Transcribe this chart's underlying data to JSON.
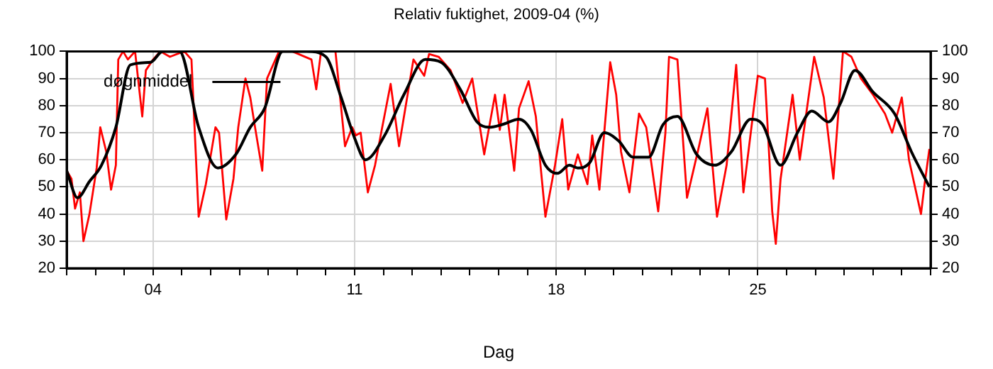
{
  "chart_data": {
    "type": "line",
    "title": "Relativ fuktighet, 2009-04 (%)",
    "xlabel": "Dag",
    "xlim": [
      "2009-04-01",
      "2009-05-01"
    ],
    "xticks": [
      {
        "value": "2009-04-01",
        "label": null
      },
      {
        "value": "2009-04-02",
        "label": null
      },
      {
        "value": "2009-04-03",
        "label": null
      },
      {
        "value": "2009-04-04",
        "label": "04"
      },
      {
        "value": "2009-04-05",
        "label": null
      },
      {
        "value": "2009-04-06",
        "label": null
      },
      {
        "value": "2009-04-07",
        "label": null
      },
      {
        "value": "2009-04-08",
        "label": null
      },
      {
        "value": "2009-04-09",
        "label": null
      },
      {
        "value": "2009-04-10",
        "label": null
      },
      {
        "value": "2009-04-11",
        "label": "11"
      },
      {
        "value": "2009-04-12",
        "label": null
      },
      {
        "value": "2009-04-13",
        "label": null
      },
      {
        "value": "2009-04-14",
        "label": null
      },
      {
        "value": "2009-04-15",
        "label": null
      },
      {
        "value": "2009-04-16",
        "label": null
      },
      {
        "value": "2009-04-17",
        "label": null
      },
      {
        "value": "2009-04-18",
        "label": "18"
      },
      {
        "value": "2009-04-19",
        "label": null
      },
      {
        "value": "2009-04-20",
        "label": null
      },
      {
        "value": "2009-04-21",
        "label": null
      },
      {
        "value": "2009-04-22",
        "label": null
      },
      {
        "value": "2009-04-23",
        "label": null
      },
      {
        "value": "2009-04-24",
        "label": null
      },
      {
        "value": "2009-04-25",
        "label": "25"
      },
      {
        "value": "2009-04-26",
        "label": null
      },
      {
        "value": "2009-04-27",
        "label": null
      },
      {
        "value": "2009-04-28",
        "label": null
      },
      {
        "value": "2009-04-29",
        "label": null
      },
      {
        "value": "2009-04-30",
        "label": null
      },
      {
        "value": "2009-05-01",
        "label": null
      }
    ],
    "ylim": [
      20,
      100
    ],
    "yticks": [
      20,
      30,
      40,
      50,
      60,
      70,
      80,
      90,
      100
    ],
    "y2lim": [
      20,
      100
    ],
    "y2ticks": [
      20,
      30,
      40,
      50,
      60,
      70,
      80,
      90,
      100
    ],
    "grid": true,
    "legend": "top left",
    "marker": "none",
    "series": [
      {
        "color": "#ff0000",
        "x": [
          "2009-04-01T00:00",
          "2009-04-01T04:00",
          "2009-04-01T07:00",
          "2009-04-01T11:00",
          "2009-04-01T14:00",
          "2009-04-01T19:00",
          "2009-04-02T01:00",
          "2009-04-02T04:00",
          "2009-04-02T09:00",
          "2009-04-02T13:00",
          "2009-04-02T17:00",
          "2009-04-02T19:00",
          "2009-04-02T23:00",
          "2009-04-03T03:00",
          "2009-04-03T09:00",
          "2009-04-03T15:00",
          "2009-04-03T18:00",
          "2009-04-04T00:00",
          "2009-04-04T06:00",
          "2009-04-04T14:00",
          "2009-04-05T02:00",
          "2009-04-05T08:00",
          "2009-04-05T14:00",
          "2009-04-05T20:00",
          "2009-04-06T04:00",
          "2009-04-06T07:00",
          "2009-04-06T13:00",
          "2009-04-06T19:00",
          "2009-04-06T23:00",
          "2009-04-07T05:00",
          "2009-04-07T09:00",
          "2009-04-07T13:00",
          "2009-04-07T19:00",
          "2009-04-07T23:00",
          "2009-04-08T09:00",
          "2009-04-08T20:00",
          "2009-04-09T12:00",
          "2009-04-09T16:00",
          "2009-04-09T20:00",
          "2009-04-10T08:00",
          "2009-04-10T16:00",
          "2009-04-10T22:00",
          "2009-04-11T01:00",
          "2009-04-11T05:00",
          "2009-04-11T11:00",
          "2009-04-11T17:00",
          "2009-04-11T23:00",
          "2009-04-12T06:00",
          "2009-04-12T13:00",
          "2009-04-12T19:00",
          "2009-04-13T01:00",
          "2009-04-13T10:00",
          "2009-04-13T14:00",
          "2009-04-13T22:00",
          "2009-04-14T08:00",
          "2009-04-14T18:00",
          "2009-04-15T02:00",
          "2009-04-15T12:00",
          "2009-04-15T21:00",
          "2009-04-16T01:00",
          "2009-04-16T05:00",
          "2009-04-16T13:00",
          "2009-04-16T17:00",
          "2009-04-17T01:00",
          "2009-04-17T07:00",
          "2009-04-17T15:00",
          "2009-04-17T23:00",
          "2009-04-18T05:00",
          "2009-04-18T10:00",
          "2009-04-18T18:00",
          "2009-04-19T02:00",
          "2009-04-19T06:00",
          "2009-04-19T12:00",
          "2009-04-19T21:00",
          "2009-04-20T02:00",
          "2009-04-20T06:00",
          "2009-04-20T13:00",
          "2009-04-20T21:00",
          "2009-04-21T03:00",
          "2009-04-21T13:00",
          "2009-04-21T19:00",
          "2009-04-21T22:00",
          "2009-04-22T05:00",
          "2009-04-22T13:00",
          "2009-04-22T23:00",
          "2009-04-23T06:00",
          "2009-04-23T14:00",
          "2009-04-23T22:00",
          "2009-04-24T06:00",
          "2009-04-24T12:00",
          "2009-04-25T00:00",
          "2009-04-25T06:00",
          "2009-04-25T12:00",
          "2009-04-25T15:00",
          "2009-04-25T19:00",
          "2009-04-26T05:00",
          "2009-04-26T11:00",
          "2009-04-26T23:00",
          "2009-04-27T07:00",
          "2009-04-27T15:00",
          "2009-04-27T23:00",
          "2009-04-28T06:00",
          "2009-04-28T14:00",
          "2009-04-29T00:00",
          "2009-04-29T10:00",
          "2009-04-29T16:00",
          "2009-04-30T00:00",
          "2009-04-30T06:00",
          "2009-04-30T16:00",
          "2009-04-30T19:00",
          "2009-04-30T23:00"
        ],
        "values": [
          56,
          53,
          42,
          48,
          30,
          40,
          57,
          72,
          63,
          49,
          58,
          97,
          100,
          97,
          100,
          76,
          93,
          97,
          100,
          98,
          100,
          97,
          39,
          51,
          72,
          70,
          38,
          53,
          72,
          90,
          83,
          72,
          56,
          90,
          100,
          100,
          97,
          86,
          100,
          100,
          65,
          72,
          69,
          70,
          48,
          58,
          72,
          88,
          65,
          81,
          97,
          91,
          99,
          98,
          93,
          81,
          90,
          62,
          84,
          71,
          84,
          56,
          79,
          89,
          76,
          39,
          58,
          75,
          49,
          62,
          51,
          69,
          49,
          96,
          84,
          63,
          48,
          77,
          72,
          41,
          70,
          98,
          97,
          46,
          65,
          79,
          39,
          58,
          95,
          48,
          91,
          90,
          41,
          29,
          53,
          84,
          60,
          98,
          83,
          53,
          100,
          98,
          90,
          84,
          77,
          70,
          83,
          60,
          40,
          51,
          64
        ]
      },
      {
        "name": "døgnmiddel",
        "color": "#000000",
        "x": [
          "2009-04-01T00:00",
          "2009-04-01T09:00",
          "2009-04-01T19:00",
          "2009-04-02T05:00",
          "2009-04-02T17:00",
          "2009-04-03T05:00",
          "2009-04-03T22:00",
          "2009-04-04T08:00",
          "2009-04-04T22:00",
          "2009-04-05T14:00",
          "2009-04-06T06:00",
          "2009-04-06T21:00",
          "2009-04-07T09:00",
          "2009-04-07T21:00",
          "2009-04-08T12:00",
          "2009-04-09T08:00",
          "2009-04-10T00:00",
          "2009-04-10T12:00",
          "2009-04-11T00:00",
          "2009-04-11T09:00",
          "2009-04-12T01:00",
          "2009-04-12T17:00",
          "2009-04-13T11:00",
          "2009-04-14T00:00",
          "2009-04-14T16:00",
          "2009-04-15T06:00",
          "2009-04-15T16:00",
          "2009-04-16T03:00",
          "2009-04-16T17:00",
          "2009-04-17T03:00",
          "2009-04-17T15:00",
          "2009-04-18T01:00",
          "2009-04-18T11:00",
          "2009-04-18T18:00",
          "2009-04-19T04:00",
          "2009-04-19T16:00",
          "2009-04-20T04:00",
          "2009-04-20T16:00",
          "2009-04-21T05:00",
          "2009-04-21T17:00",
          "2009-04-22T05:00",
          "2009-04-22T21:00",
          "2009-04-23T12:00",
          "2009-04-24T02:00",
          "2009-04-24T18:00",
          "2009-04-25T04:00",
          "2009-04-25T19:00",
          "2009-04-26T09:00",
          "2009-04-26T21:00",
          "2009-04-27T11:00",
          "2009-04-27T21:00",
          "2009-04-28T09:00",
          "2009-04-29T00:00",
          "2009-04-29T18:00",
          "2009-04-30T08:00",
          "2009-04-30T23:00"
        ],
        "values": [
          56,
          46,
          52,
          58,
          72,
          95,
          96,
          100,
          100,
          72,
          57,
          62,
          72,
          79,
          100,
          100,
          98,
          84,
          68,
          60,
          69,
          84,
          97,
          96,
          86,
          74,
          72,
          73,
          75,
          71,
          58,
          55,
          58,
          57,
          59,
          70,
          67,
          61,
          61,
          73,
          76,
          62,
          58,
          63,
          75,
          73,
          58,
          70,
          78,
          74,
          81,
          93,
          85,
          77,
          63,
          50
        ]
      }
    ]
  }
}
